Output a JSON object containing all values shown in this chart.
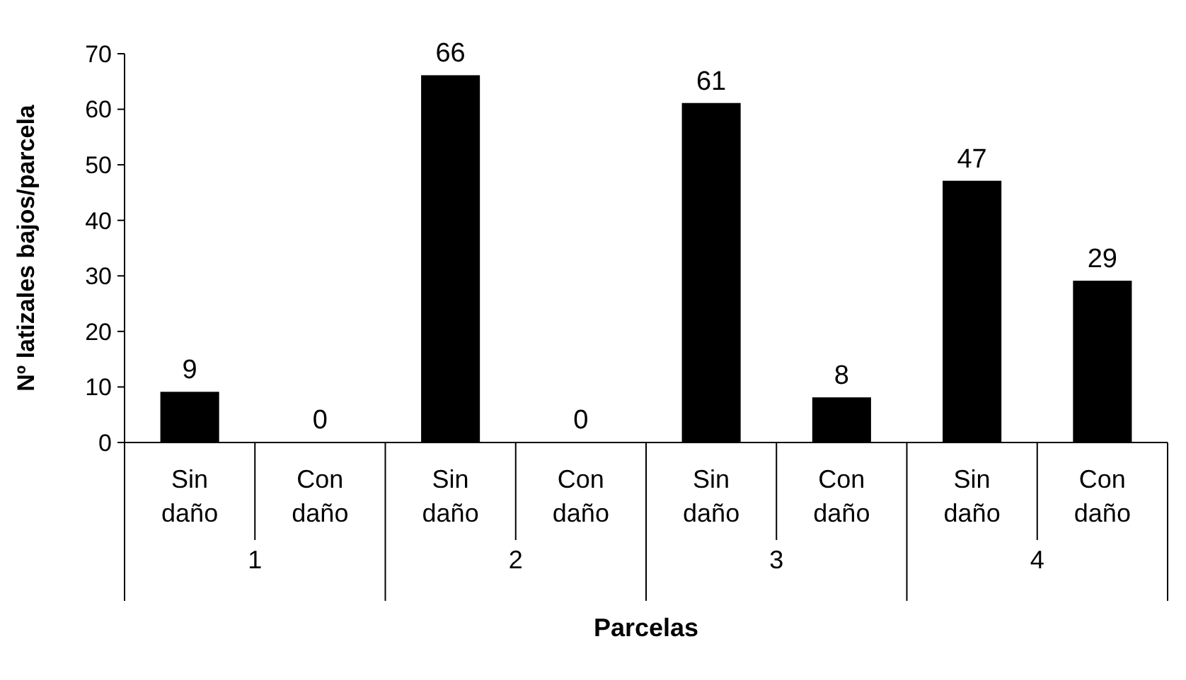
{
  "chart_data": {
    "type": "bar",
    "xlabel": "Parcelas",
    "ylabel": "Nº latizales bajos/parcela",
    "categories": [
      "Sin daño",
      "Con daño",
      "Sin daño",
      "Con daño",
      "Sin daño",
      "Con daño",
      "Sin daño",
      "Con daño"
    ],
    "values": [
      9,
      0,
      66,
      0,
      61,
      8,
      47,
      29
    ],
    "color": "#000000",
    "ylim": [
      0,
      70
    ],
    "yticks": [
      0,
      10,
      20,
      30,
      40,
      50,
      60,
      70
    ],
    "data_labels": true,
    "annotations": [
      "1",
      "2",
      "3",
      "4"
    ]
  }
}
